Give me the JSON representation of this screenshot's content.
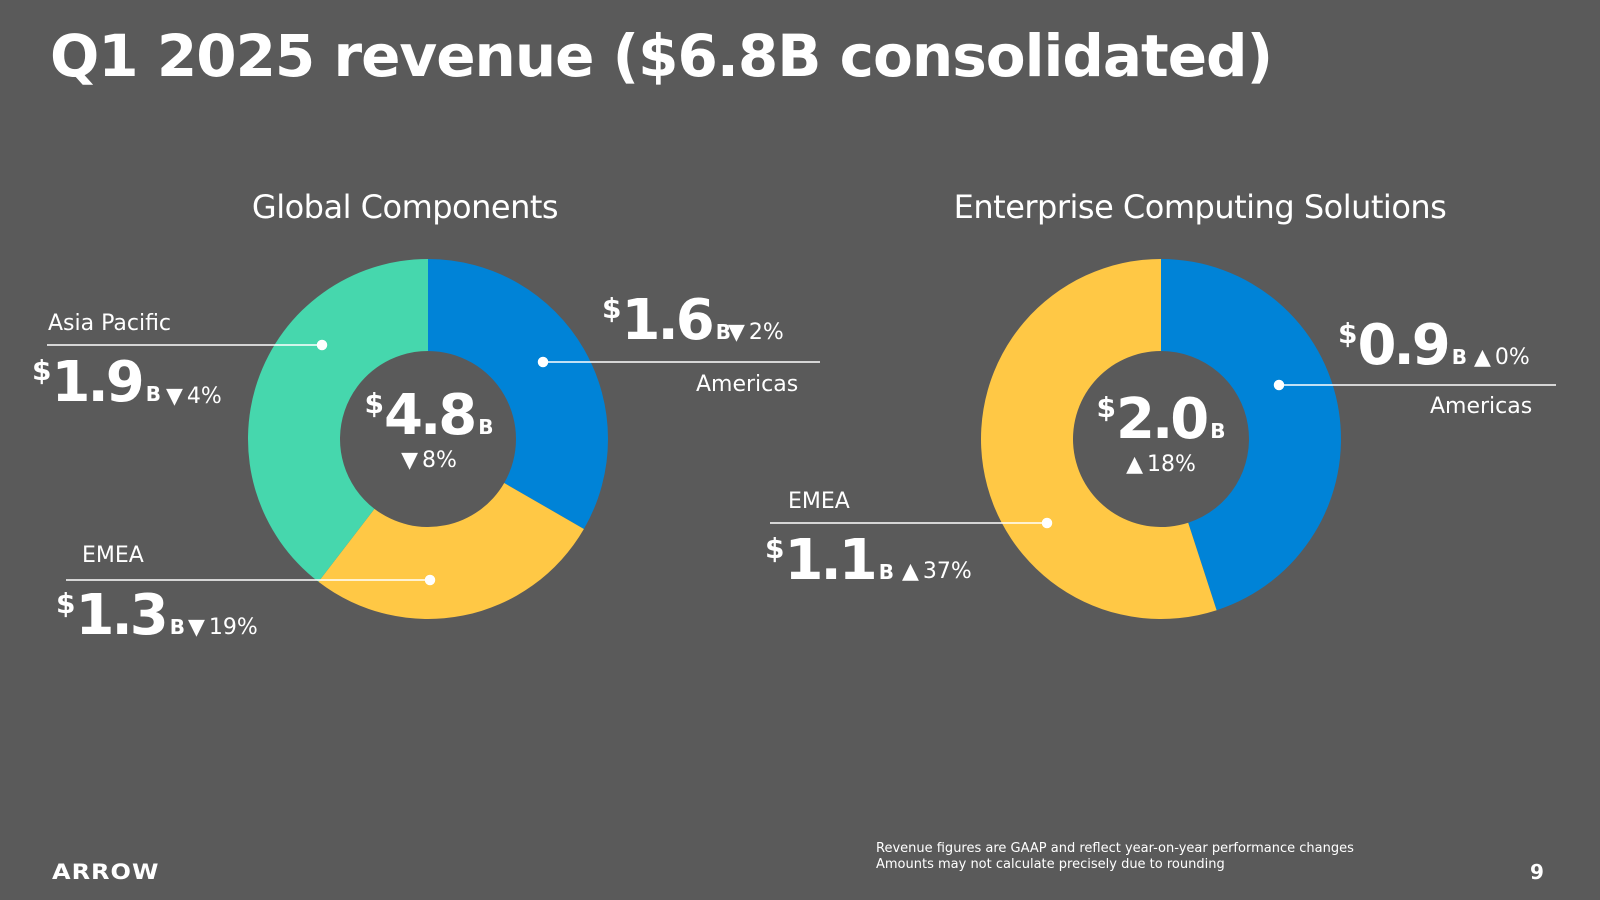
{
  "slide": {
    "title": "Q1 2025 revenue ($6.8B consolidated)",
    "footnote_1": "Revenue figures are GAAP and reflect year-on-year performance changes",
    "footnote_2": "Amounts may not calculate precisely due to rounding",
    "logo_text": "ARROW",
    "page_number": "9"
  },
  "chart_data": [
    {
      "type": "pie",
      "title": "Global Components",
      "total": {
        "currency": "$",
        "value": "4.8",
        "unit": "B",
        "change_arrow": "▼",
        "change": "8%"
      },
      "slices": [
        {
          "name": "Americas",
          "value": 1.6,
          "display": "1.6",
          "currency": "$",
          "unit": "B",
          "change_arrow": "▼",
          "change": "2%",
          "color": "#0083d7"
        },
        {
          "name": "EMEA",
          "value": 1.3,
          "display": "1.3",
          "currency": "$",
          "unit": "B",
          "change_arrow": "▼",
          "change": "19%",
          "color": "#ffc845"
        },
        {
          "name": "Asia Pacific",
          "value": 1.9,
          "display": "1.9",
          "currency": "$",
          "unit": "B",
          "change_arrow": "▼",
          "change": "4%",
          "color": "#46d7ad"
        }
      ]
    },
    {
      "type": "pie",
      "title": "Enterprise Computing Solutions",
      "total": {
        "currency": "$",
        "value": "2.0",
        "unit": "B",
        "change_arrow": "▲",
        "change": "18%"
      },
      "slices": [
        {
          "name": "Americas",
          "value": 0.9,
          "display": "0.9",
          "currency": "$",
          "unit": "B",
          "change_arrow": "▲",
          "change": "0%",
          "color": "#0083d7"
        },
        {
          "name": "EMEA",
          "value": 1.1,
          "display": "1.1",
          "currency": "$",
          "unit": "B",
          "change_arrow": "▲",
          "change": "37%",
          "color": "#ffc845"
        }
      ]
    }
  ]
}
